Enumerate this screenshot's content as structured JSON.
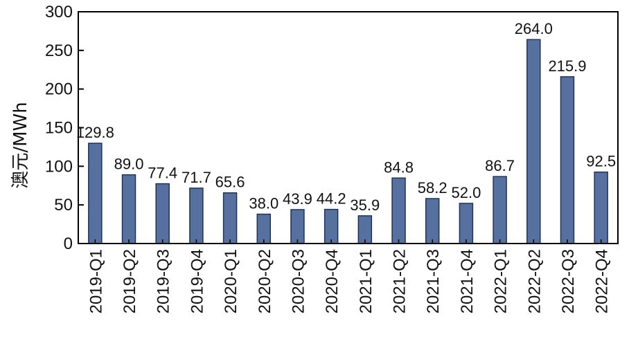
{
  "chart_data": {
    "type": "bar",
    "ylabel": "澳元/MWh",
    "xlabel": "",
    "ylim": [
      0,
      300
    ],
    "yticks": [
      0,
      50,
      100,
      150,
      200,
      250,
      300
    ],
    "categories": [
      "2019-Q1",
      "2019-Q2",
      "2019-Q3",
      "2019-Q4",
      "2020-Q1",
      "2020-Q2",
      "2020-Q3",
      "2020-Q4",
      "2021-Q1",
      "2021-Q2",
      "2021-Q3",
      "2021-Q4",
      "2022-Q1",
      "2022-Q2",
      "2022-Q3",
      "2022-Q4"
    ],
    "values": [
      129.8,
      89.0,
      77.4,
      71.7,
      65.6,
      38.0,
      43.9,
      44.2,
      35.9,
      84.8,
      58.2,
      52.0,
      86.7,
      264.0,
      215.9,
      92.5
    ],
    "value_labels": [
      "129.8",
      "89.0",
      "77.4",
      "71.7",
      "65.6",
      "38.0",
      "43.9",
      "44.2",
      "35.9",
      "84.8",
      "58.2",
      "52.0",
      "86.7",
      "264.0",
      "215.9",
      "92.5"
    ],
    "bar_color": "#56719f",
    "grid": false,
    "legend": "none"
  }
}
